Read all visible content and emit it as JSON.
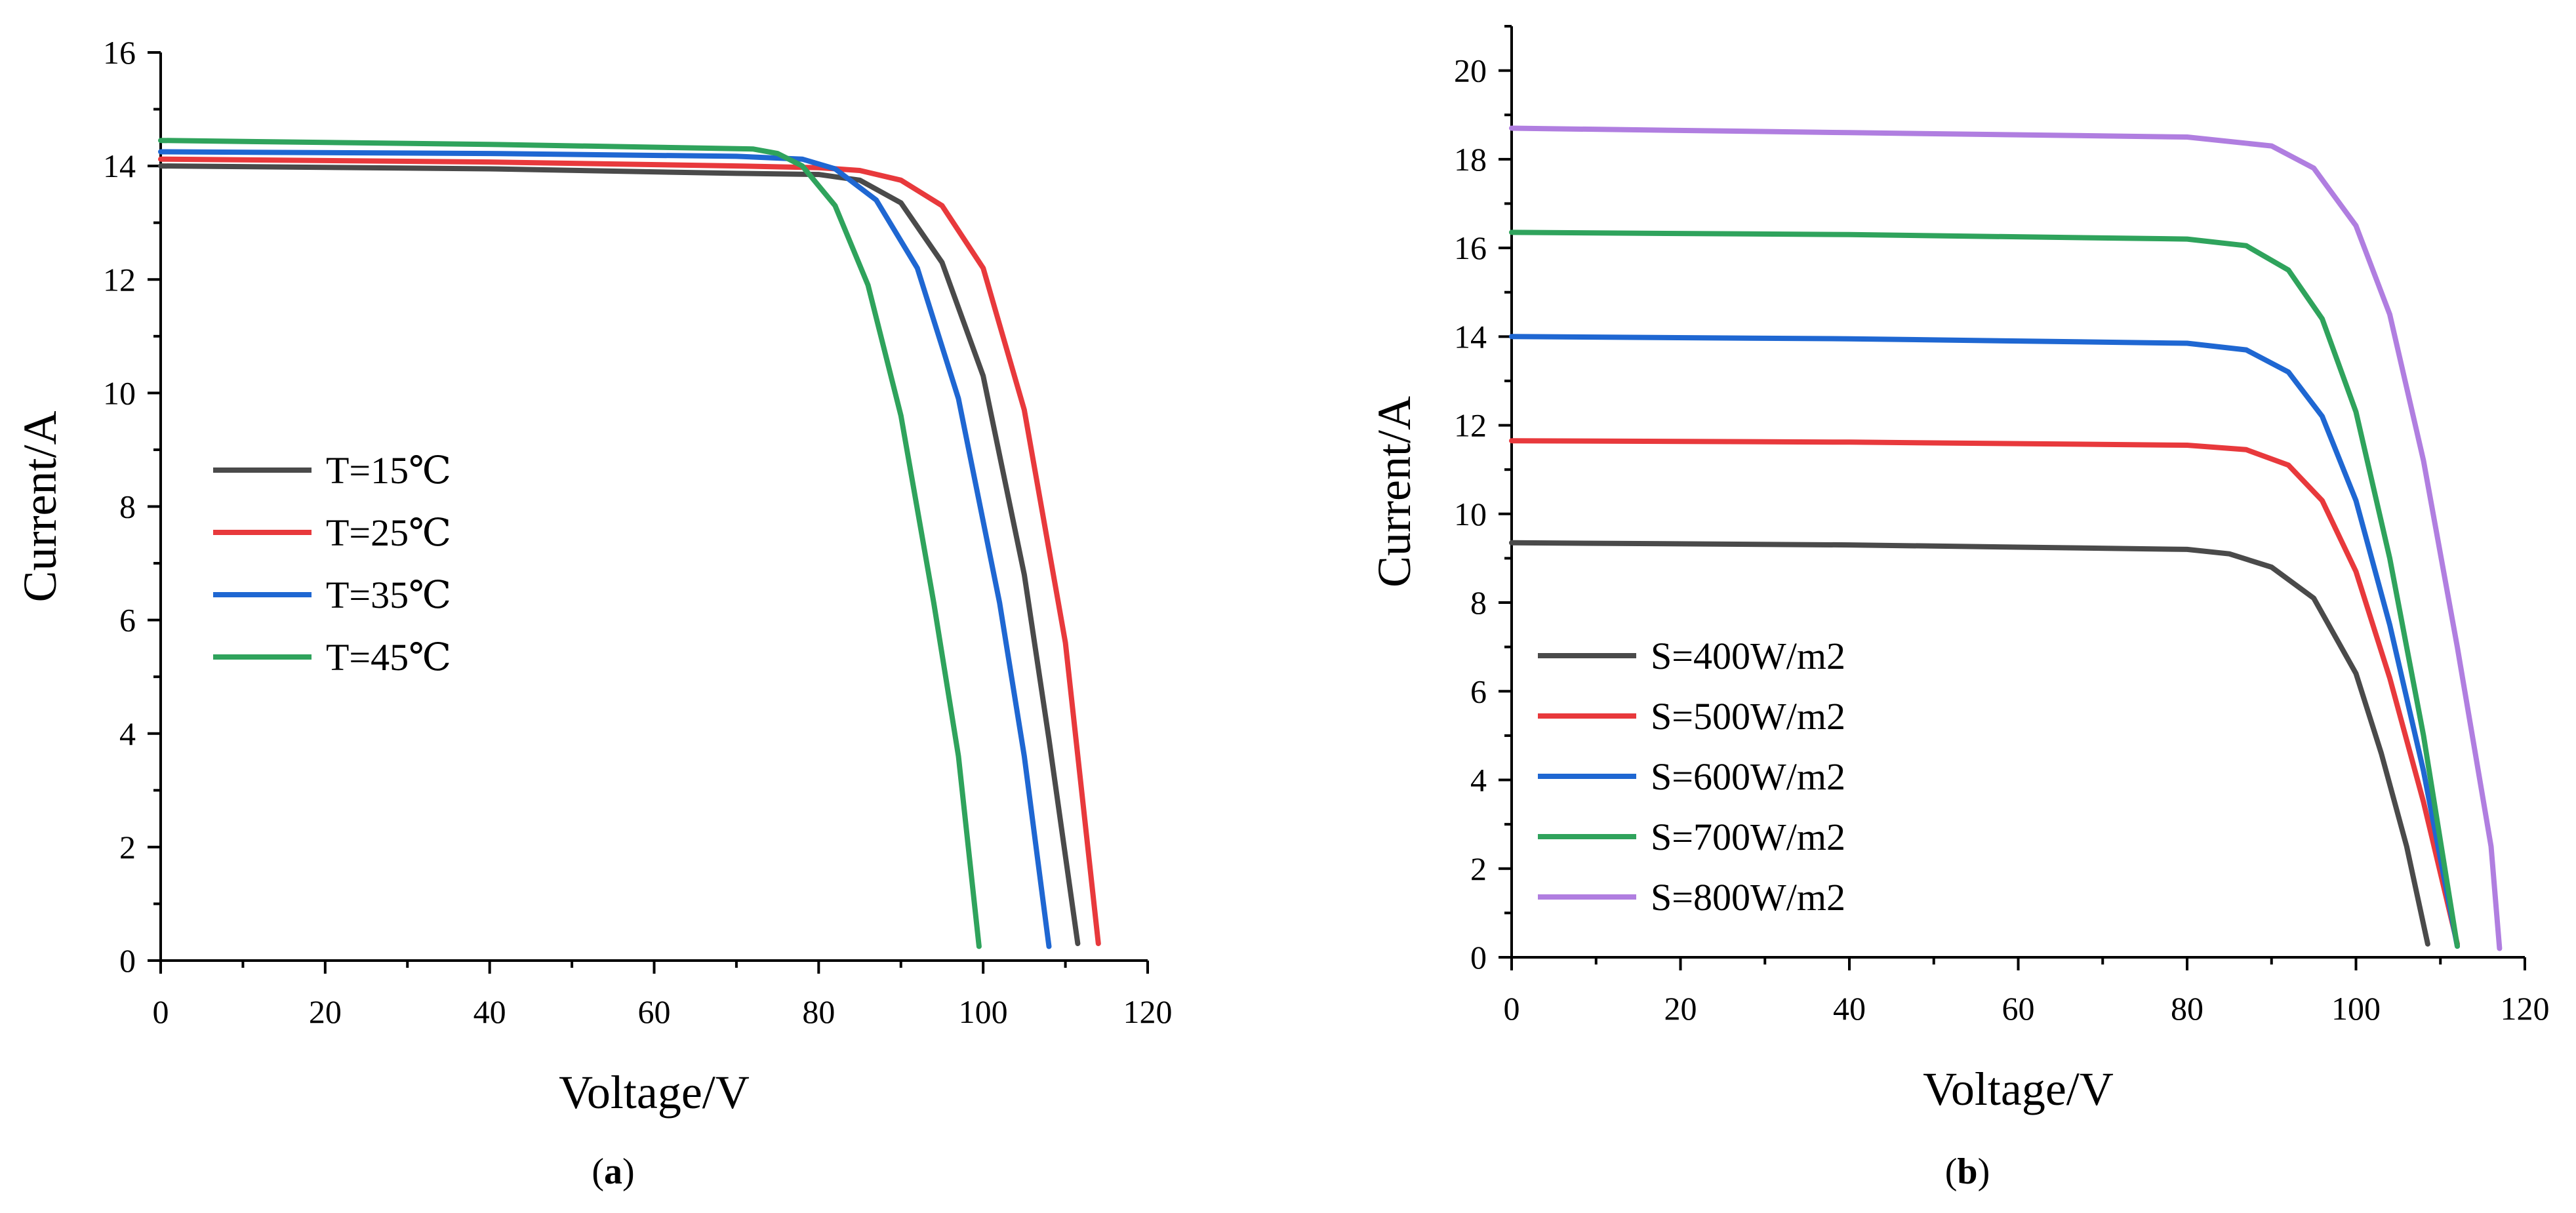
{
  "chart_data": [
    {
      "id": "a",
      "type": "line",
      "caption": "a",
      "title": "",
      "xlabel": "Voltage/V",
      "ylabel": "Current/A",
      "xlim": [
        0,
        120
      ],
      "ylim": [
        0,
        16
      ],
      "xticks": [
        0,
        20,
        40,
        60,
        80,
        100,
        120
      ],
      "yticks": [
        0,
        2,
        4,
        6,
        8,
        10,
        12,
        14,
        16
      ],
      "grid": false,
      "legend_position": "center-left",
      "series": [
        {
          "name": "T=15℃",
          "color": "#4a4a4a",
          "x": [
            0,
            40,
            70,
            80,
            85,
            90,
            95,
            100,
            105,
            108,
            111.5
          ],
          "y": [
            14.0,
            13.95,
            13.87,
            13.85,
            13.75,
            13.35,
            12.3,
            10.3,
            6.8,
            3.9,
            0.3
          ]
        },
        {
          "name": "T=25℃",
          "color": "#e8393c",
          "x": [
            0,
            40,
            70,
            80,
            85,
            90,
            95,
            100,
            105,
            110,
            114
          ],
          "y": [
            14.12,
            14.07,
            14.0,
            13.97,
            13.92,
            13.75,
            13.3,
            12.2,
            9.7,
            5.6,
            0.3
          ]
        },
        {
          "name": "T=35℃",
          "color": "#1f67d2",
          "x": [
            0,
            40,
            70,
            78,
            82,
            87,
            92,
            97,
            102,
            105,
            108
          ],
          "y": [
            14.25,
            14.22,
            14.17,
            14.12,
            13.95,
            13.4,
            12.2,
            9.9,
            6.3,
            3.6,
            0.25
          ]
        },
        {
          "name": "T=45℃",
          "color": "#2fa35c",
          "x": [
            0,
            40,
            72,
            75,
            78,
            82,
            86,
            90,
            94,
            97,
            99.5
          ],
          "y": [
            14.45,
            14.38,
            14.3,
            14.22,
            14.0,
            13.3,
            11.9,
            9.6,
            6.3,
            3.6,
            0.25
          ]
        }
      ]
    },
    {
      "id": "b",
      "type": "line",
      "caption": "b",
      "title": "",
      "xlabel": "Voltage/V",
      "ylabel": "Current/A",
      "xlim": [
        0,
        120
      ],
      "ylim": [
        0,
        21
      ],
      "xticks": [
        0,
        20,
        40,
        60,
        80,
        100,
        120
      ],
      "yticks": [
        0,
        2,
        4,
        6,
        8,
        10,
        12,
        14,
        16,
        18,
        20
      ],
      "grid": false,
      "legend_position": "bottom-left",
      "series": [
        {
          "name": "S=400W/m2",
          "color": "#4a4a4a",
          "x": [
            0,
            40,
            80,
            85,
            90,
            95,
            100,
            103,
            106,
            108.5
          ],
          "y": [
            9.35,
            9.3,
            9.2,
            9.1,
            8.8,
            8.1,
            6.4,
            4.6,
            2.5,
            0.3
          ]
        },
        {
          "name": "S=500W/m2",
          "color": "#e8393c",
          "x": [
            0,
            40,
            80,
            87,
            92,
            96,
            100,
            104,
            108,
            112
          ],
          "y": [
            11.65,
            11.62,
            11.55,
            11.45,
            11.1,
            10.3,
            8.7,
            6.3,
            3.5,
            0.3
          ]
        },
        {
          "name": "S=600W/m2",
          "color": "#1f67d2",
          "x": [
            0,
            40,
            80,
            87,
            92,
            96,
            100,
            104,
            108,
            112
          ],
          "y": [
            14.0,
            13.95,
            13.85,
            13.7,
            13.2,
            12.2,
            10.3,
            7.5,
            4.2,
            0.25
          ]
        },
        {
          "name": "S=700W/m2",
          "color": "#2fa35c",
          "x": [
            0,
            40,
            80,
            87,
            92,
            96,
            100,
            104,
            108,
            112
          ],
          "y": [
            16.35,
            16.3,
            16.2,
            16.05,
            15.5,
            14.4,
            12.3,
            9.0,
            5.0,
            0.25
          ]
        },
        {
          "name": "S=800W/m2",
          "color": "#b07ee0",
          "x": [
            0,
            40,
            80,
            90,
            95,
            100,
            104,
            108,
            112,
            116,
            117
          ],
          "y": [
            18.7,
            18.6,
            18.5,
            18.3,
            17.8,
            16.5,
            14.5,
            11.2,
            7.0,
            2.5,
            0.2
          ]
        }
      ]
    }
  ]
}
